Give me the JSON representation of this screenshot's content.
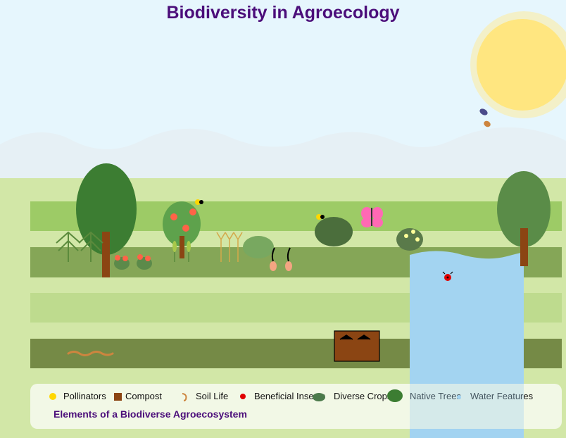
{
  "title": "Biodiversity in Agroecology",
  "legend": {
    "items": [
      {
        "label": "Pollinators",
        "icon": "pollinator-icon",
        "color": "#FFD700"
      },
      {
        "label": "Compost",
        "icon": "compost-icon",
        "color": "#8B4513"
      },
      {
        "label": "Soil Life",
        "icon": "worm-icon",
        "color": "#CD853F"
      },
      {
        "label": "Beneficial Insects",
        "icon": "ladybug-icon",
        "color": "#E00000"
      },
      {
        "label": "Diverse Crops",
        "icon": "crop-icon",
        "color": "#4B7A4B"
      },
      {
        "label": "Native Trees",
        "icon": "tree-icon",
        "color": "#3C7D32"
      },
      {
        "label": "Water Features",
        "icon": "water-icon",
        "color": "#A3D4F1"
      }
    ],
    "caption": "Elements of a Biodiverse Agroecosystem"
  },
  "colors": {
    "sky": "#E8F6FD",
    "hills": "#E6F0F5",
    "ground": "#D2E7A7",
    "sun": "#FFE680",
    "water": "#A3D4F1",
    "title": "#4B0E7A"
  }
}
